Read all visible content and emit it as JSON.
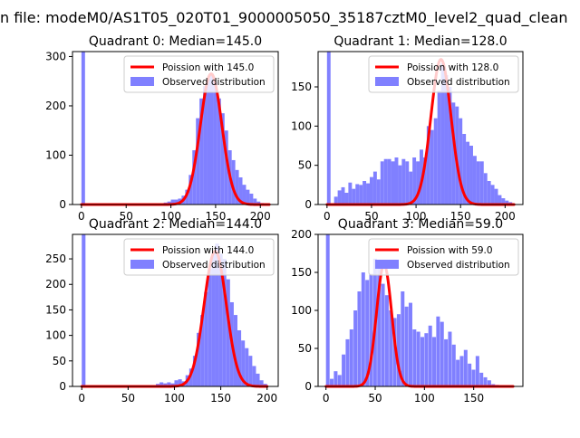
{
  "suptitle": "n file: modeM0/AS1T05_020T01_9000005050_35187cztM0_level2_quad_clean",
  "colors": {
    "poisson": "#ff0000",
    "observed": "#8080ff",
    "axis": "#000000"
  },
  "legend": {
    "observed_label": "Observed distribution",
    "placement": "top-right"
  },
  "chart_data": [
    {
      "type": "bar",
      "title": "Quadrant 0: Median=145.0",
      "xlabel": "",
      "ylabel": "",
      "xlim": [
        -10,
        220
      ],
      "ylim": [
        0,
        310
      ],
      "xticks": [
        0,
        50,
        100,
        150,
        200
      ],
      "yticks": [
        0,
        100,
        200,
        300
      ],
      "bin_width": 4,
      "observed": {
        "name": "Observed distribution",
        "bins": [
          [
            0,
            310
          ],
          [
            92,
            4
          ],
          [
            96,
            6
          ],
          [
            100,
            10
          ],
          [
            104,
            10
          ],
          [
            108,
            12
          ],
          [
            112,
            18
          ],
          [
            116,
            30
          ],
          [
            120,
            60
          ],
          [
            124,
            110
          ],
          [
            128,
            175
          ],
          [
            132,
            215
          ],
          [
            136,
            240
          ],
          [
            140,
            255
          ],
          [
            144,
            265
          ],
          [
            148,
            248
          ],
          [
            152,
            215
          ],
          [
            156,
            185
          ],
          [
            160,
            150
          ],
          [
            164,
            110
          ],
          [
            168,
            90
          ],
          [
            172,
            70
          ],
          [
            176,
            55
          ],
          [
            180,
            40
          ],
          [
            184,
            30
          ],
          [
            188,
            22
          ],
          [
            192,
            12
          ],
          [
            196,
            6
          ],
          [
            200,
            3
          ]
        ]
      },
      "poisson": {
        "name": "Poission with 145.0",
        "mean": 145.0,
        "peak": 265,
        "x_range": [
          0,
          210
        ]
      }
    },
    {
      "type": "bar",
      "title": "Quadrant 1: Median=128.0",
      "xlabel": "",
      "ylabel": "",
      "xlim": [
        -10,
        220
      ],
      "ylim": [
        0,
        195
      ],
      "xticks": [
        0,
        50,
        100,
        150,
        200
      ],
      "yticks": [
        0,
        50,
        100,
        150
      ],
      "bin_width": 4,
      "observed": {
        "name": "Observed distribution",
        "bins": [
          [
            0,
            195
          ],
          [
            8,
            10
          ],
          [
            12,
            18
          ],
          [
            16,
            22
          ],
          [
            20,
            15
          ],
          [
            24,
            28
          ],
          [
            28,
            20
          ],
          [
            32,
            26
          ],
          [
            36,
            25
          ],
          [
            40,
            30
          ],
          [
            44,
            27
          ],
          [
            48,
            35
          ],
          [
            52,
            42
          ],
          [
            56,
            32
          ],
          [
            60,
            55
          ],
          [
            64,
            58
          ],
          [
            68,
            58
          ],
          [
            72,
            55
          ],
          [
            76,
            60
          ],
          [
            80,
            50
          ],
          [
            84,
            58
          ],
          [
            88,
            55
          ],
          [
            92,
            42
          ],
          [
            96,
            60
          ],
          [
            100,
            55
          ],
          [
            104,
            70
          ],
          [
            108,
            60
          ],
          [
            112,
            100
          ],
          [
            116,
            95
          ],
          [
            120,
            110
          ],
          [
            124,
            145
          ],
          [
            128,
            180
          ],
          [
            132,
            165
          ],
          [
            136,
            150
          ],
          [
            140,
            130
          ],
          [
            144,
            125
          ],
          [
            148,
            110
          ],
          [
            152,
            90
          ],
          [
            156,
            80
          ],
          [
            160,
            75
          ],
          [
            164,
            62
          ],
          [
            168,
            55
          ],
          [
            172,
            55
          ],
          [
            176,
            40
          ],
          [
            180,
            30
          ],
          [
            184,
            25
          ],
          [
            188,
            20
          ],
          [
            192,
            12
          ],
          [
            196,
            8
          ],
          [
            200,
            5
          ],
          [
            204,
            3
          ]
        ]
      },
      "poisson": {
        "name": "Poission with 128.0",
        "mean": 128.0,
        "peak": 185,
        "x_range": [
          0,
          210
        ]
      }
    },
    {
      "type": "bar",
      "title": "Quadrant 2: Median=144.0",
      "xlabel": "",
      "ylabel": "",
      "xlim": [
        -10,
        212
      ],
      "ylim": [
        0,
        298
      ],
      "xticks": [
        0,
        50,
        100,
        150,
        200
      ],
      "yticks": [
        0,
        50,
        100,
        150,
        200,
        250
      ],
      "bin_width": 4,
      "observed": {
        "name": "Observed distribution",
        "bins": [
          [
            0,
            298
          ],
          [
            80,
            5
          ],
          [
            84,
            8
          ],
          [
            88,
            6
          ],
          [
            92,
            8
          ],
          [
            96,
            6
          ],
          [
            100,
            12
          ],
          [
            104,
            14
          ],
          [
            108,
            10
          ],
          [
            112,
            22
          ],
          [
            116,
            35
          ],
          [
            120,
            60
          ],
          [
            124,
            105
          ],
          [
            128,
            140
          ],
          [
            132,
            185
          ],
          [
            136,
            230
          ],
          [
            140,
            260
          ],
          [
            144,
            280
          ],
          [
            148,
            260
          ],
          [
            152,
            250
          ],
          [
            156,
            210
          ],
          [
            160,
            165
          ],
          [
            164,
            140
          ],
          [
            168,
            110
          ],
          [
            172,
            90
          ],
          [
            176,
            75
          ],
          [
            180,
            60
          ],
          [
            184,
            40
          ],
          [
            188,
            25
          ],
          [
            192,
            12
          ],
          [
            196,
            5
          ]
        ]
      },
      "poisson": {
        "name": "Poission with 144.0",
        "mean": 144.0,
        "peak": 265,
        "x_range": [
          0,
          200
        ]
      }
    },
    {
      "type": "bar",
      "title": "Quadrant 3: Median=59.0",
      "xlabel": "",
      "ylabel": "",
      "xlim": [
        -8,
        200
      ],
      "ylim": [
        0,
        200
      ],
      "xticks": [
        0,
        50,
        100,
        150
      ],
      "yticks": [
        0,
        50,
        100,
        150,
        200
      ],
      "bin_width": 3.7,
      "observed": {
        "name": "Observed distribution",
        "bins": [
          [
            0,
            200
          ],
          [
            4,
            10
          ],
          [
            8,
            20
          ],
          [
            12,
            15
          ],
          [
            16,
            42
          ],
          [
            20,
            62
          ],
          [
            24,
            75
          ],
          [
            28,
            100
          ],
          [
            32,
            125
          ],
          [
            36,
            150
          ],
          [
            40,
            140
          ],
          [
            44,
            148
          ],
          [
            48,
            168
          ],
          [
            52,
            160
          ],
          [
            56,
            135
          ],
          [
            60,
            120
          ],
          [
            64,
            100
          ],
          [
            68,
            90
          ],
          [
            72,
            95
          ],
          [
            76,
            125
          ],
          [
            80,
            105
          ],
          [
            84,
            110
          ],
          [
            88,
            75
          ],
          [
            92,
            72
          ],
          [
            96,
            65
          ],
          [
            100,
            70
          ],
          [
            104,
            80
          ],
          [
            108,
            65
          ],
          [
            112,
            92
          ],
          [
            116,
            85
          ],
          [
            120,
            62
          ],
          [
            124,
            72
          ],
          [
            128,
            55
          ],
          [
            132,
            35
          ],
          [
            136,
            40
          ],
          [
            140,
            48
          ],
          [
            144,
            30
          ],
          [
            148,
            22
          ],
          [
            152,
            40
          ],
          [
            156,
            18
          ],
          [
            160,
            12
          ],
          [
            164,
            8
          ],
          [
            168,
            3
          ],
          [
            172,
            2
          ]
        ]
      },
      "poisson": {
        "name": "Poission with 59.0",
        "mean": 59.0,
        "peak": 160,
        "x_range": [
          0,
          190
        ]
      }
    }
  ]
}
